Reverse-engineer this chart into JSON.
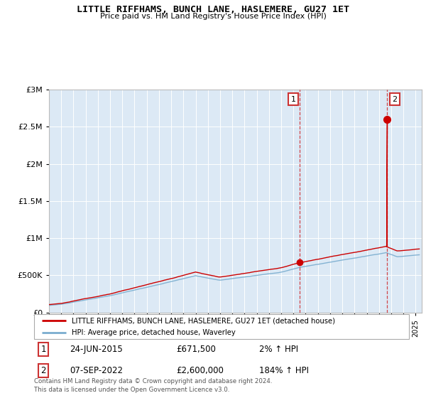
{
  "title": "LITTLE RIFFHAMS, BUNCH LANE, HASLEMERE, GU27 1ET",
  "subtitle": "Price paid vs. HM Land Registry's House Price Index (HPI)",
  "legend_line1": "LITTLE RIFFHAMS, BUNCH LANE, HASLEMERE, GU27 1ET (detached house)",
  "legend_line2": "HPI: Average price, detached house, Waverley",
  "annotation1_date": "24-JUN-2015",
  "annotation1_price": "£671,500",
  "annotation1_hpi": "2% ↑ HPI",
  "annotation1_year": 2015.48,
  "annotation1_value": 671500,
  "annotation2_date": "07-SEP-2022",
  "annotation2_price": "£2,600,000",
  "annotation2_hpi": "184% ↑ HPI",
  "annotation2_year": 2022.68,
  "annotation2_value": 2600000,
  "footer": "Contains HM Land Registry data © Crown copyright and database right 2024.\nThis data is licensed under the Open Government Licence v3.0.",
  "ylim": [
    0,
    3000000
  ],
  "xlim_start": 1995,
  "xlim_end": 2025.5,
  "plot_bg_color": "#dce9f5",
  "shade_color": "#dce9f5",
  "red_color": "#cc0000",
  "blue_color": "#7aadcf",
  "grid_color": "#ffffff",
  "dashed_color": "#cc0000"
}
